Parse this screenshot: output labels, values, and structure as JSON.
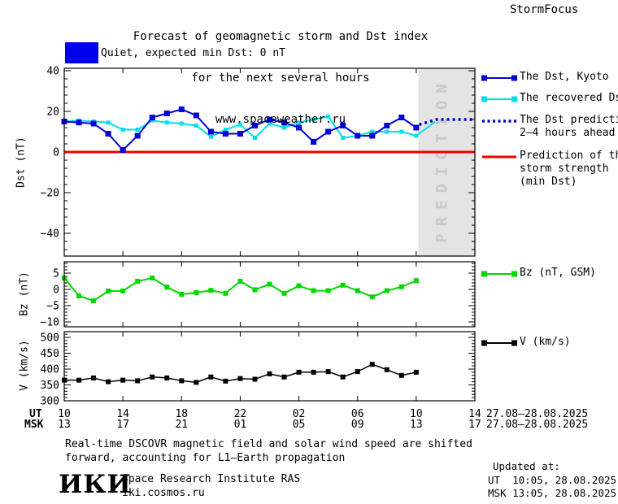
{
  "header": {
    "title_line1": "Forecast of geomagnetic storm and Dst index",
    "title_line2": "for the next several hours",
    "title_line3": "www.spaceweather.ru",
    "brand": "StormFocus"
  },
  "status": {
    "label": "Quiet, expected min Dst: 0 nT",
    "box_color": "#0000ee"
  },
  "prediction_band": {
    "label": "PREDICTION",
    "fill": "#e4e4e4",
    "text_color": "#c9c9c9"
  },
  "legend": {
    "dst_prediction_lines": [
      "The Dst prediction",
      "2–4 hours ahead"
    ],
    "storm_strength_lines": [
      "Prediction of the",
      "storm strength",
      "(min Dst)"
    ]
  },
  "chart_data": [
    {
      "id": "dst",
      "type": "line",
      "ylabel": "Dst (nT)",
      "ylim": [
        -51,
        41
      ],
      "yticks": [
        40,
        20,
        0,
        -20,
        -40
      ],
      "ytick_labels": [
        "40",
        "20",
        "0",
        "−20",
        "−40"
      ],
      "ytick_minor_step": 4,
      "x_tick_labels_ut": [
        "10",
        "14",
        "18",
        "22",
        "02",
        "06",
        "10",
        "14"
      ],
      "x_hours_span": 28,
      "grid": false,
      "series": [
        {
          "name": "The Dst, Kyoto",
          "color": "#0000d6",
          "marker": "square",
          "marker_size": 7,
          "width": 2,
          "values": [
            15,
            14.5,
            14,
            9,
            1,
            8,
            17,
            19,
            21,
            18,
            10,
            9,
            9,
            13,
            16,
            14.5,
            12,
            5,
            10,
            13,
            8,
            8,
            13,
            17,
            12
          ]
        },
        {
          "name": "The recovered Dst",
          "color": "#00dfe8",
          "marker": "square",
          "marker_size": 5,
          "width": 2,
          "values": [
            15,
            15.5,
            15,
            14.5,
            11,
            11,
            15.5,
            14.5,
            14,
            13,
            7.5,
            11,
            13.5,
            7,
            14,
            12,
            14.5,
            16,
            17.5,
            7,
            8,
            10,
            10,
            10,
            8
          ],
          "tail": {
            "x": [
              24,
              25.3
            ],
            "values": [
              8,
              15
            ]
          }
        },
        {
          "name": "The Dst prediction 2–4 hours ahead",
          "color": "#0000d6",
          "style": "dotted",
          "x": [
            24.2,
            25.4,
            28
          ],
          "values": [
            13.5,
            16,
            16
          ]
        },
        {
          "name": "Prediction of the storm strength (min Dst)",
          "color": "#ee0000",
          "style": "hline",
          "value": 0,
          "width": 3
        }
      ]
    },
    {
      "id": "bz",
      "type": "line",
      "ylabel": "Bz (nT)",
      "ylim": [
        -11.5,
        8.5
      ],
      "yticks": [
        5,
        0,
        -5,
        -10
      ],
      "ytick_labels": [
        "5",
        "0",
        "−5",
        "−10"
      ],
      "ytick_minor_step": 1,
      "grid": false,
      "series": [
        {
          "name": "Bz (nT, GSM)",
          "color": "#00d800",
          "marker": "square",
          "marker_size": 6,
          "width": 2,
          "values": [
            3.5,
            -2,
            -3.5,
            -0.5,
            -0.5,
            2.5,
            3.5,
            0.7,
            -1.5,
            -1,
            -0.3,
            -1.2,
            2.5,
            -0.1,
            1.6,
            -1.2,
            1.1,
            -0.4,
            -0.4,
            1.3,
            -0.4,
            -2.3,
            -0.4,
            0.8,
            2.7
          ]
        }
      ]
    },
    {
      "id": "v",
      "type": "line",
      "ylabel": "V (km/s)",
      "ylim": [
        300,
        518
      ],
      "yticks": [
        500,
        450,
        400,
        350,
        300
      ],
      "ytick_labels": [
        "500",
        "450",
        "400",
        "350",
        "300"
      ],
      "ytick_minor_step": 10,
      "grid": false,
      "series": [
        {
          "name": "V (km/s)",
          "color": "#000000",
          "marker": "square",
          "marker_size": 6,
          "width": 1.5,
          "values": [
            365,
            365,
            372,
            360,
            365,
            363,
            375,
            372,
            363,
            358,
            375,
            362,
            370,
            368,
            385,
            375,
            390,
            390,
            392,
            375,
            392,
            415,
            398,
            380,
            390
          ]
        }
      ]
    }
  ],
  "xaxis": {
    "ut_label": "UT",
    "msk_label": "MSK",
    "ut_ticks": [
      "10",
      "14",
      "18",
      "22",
      "02",
      "06",
      "10",
      "14"
    ],
    "msk_ticks": [
      "13",
      "17",
      "21",
      "01",
      "05",
      "09",
      "13",
      "17"
    ],
    "ut_date": "27.08–28.08.2025",
    "msk_date": "27.08–28.08.2025"
  },
  "footer": {
    "note_line1": "Real-time DSCOVR magnetic field and solar wind speed are shifted",
    "note_line2": "forward, accounting for L1–Earth propagation",
    "updated_label": "Updated at:",
    "updated_ut": "UT  10:05, 28.08.2025",
    "updated_msk": "MSK 13:05, 28.08.2025",
    "org_logo": "ИКИ",
    "org_name": "Space Research Institute RAS",
    "org_url": "iki.cosmos.ru"
  }
}
